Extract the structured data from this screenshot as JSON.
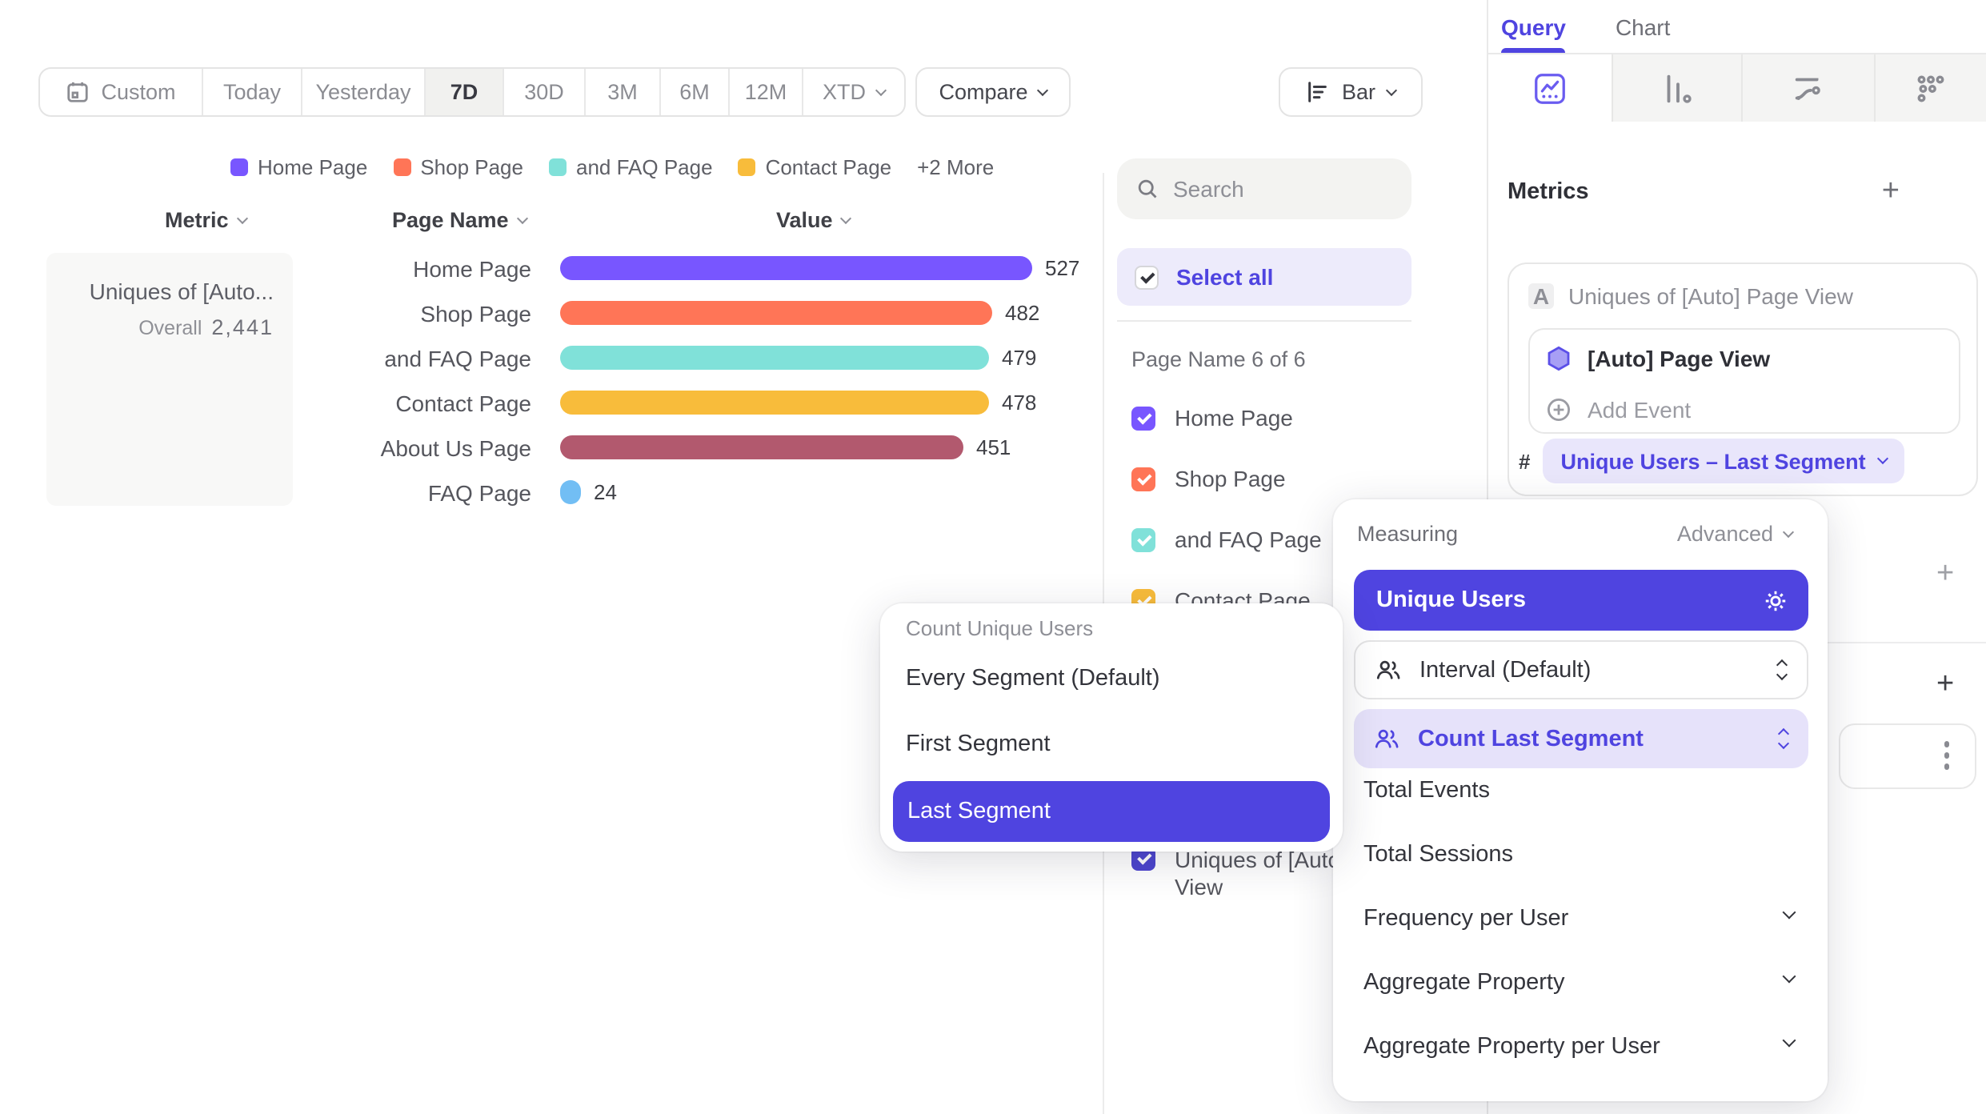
{
  "toolbar": {
    "date_ranges": [
      "Custom",
      "Today",
      "Yesterday",
      "7D",
      "30D",
      "3M",
      "6M",
      "12M",
      "XTD"
    ],
    "selected_range": "7D",
    "compare_label": "Compare",
    "chart_type_label": "Bar"
  },
  "legend": {
    "items": [
      {
        "label": "Home Page",
        "color": "#7856FF"
      },
      {
        "label": "Shop Page",
        "color": "#FF7557"
      },
      {
        "label": "and FAQ Page",
        "color": "#80E1D9"
      },
      {
        "label": "Contact Page",
        "color": "#F8BC3B"
      }
    ],
    "more_label": "+2 More"
  },
  "table": {
    "headers": [
      "Metric",
      "Page Name",
      "Value"
    ]
  },
  "metric_summary": {
    "title": "Uniques of [Auto...",
    "overall_label": "Overall",
    "overall_value": "2,441"
  },
  "chart_data": {
    "type": "bar",
    "orientation": "horizontal",
    "xmax": 527,
    "categories": [
      "Home Page",
      "Shop Page",
      "and FAQ Page",
      "Contact Page",
      "About Us Page",
      "FAQ Page"
    ],
    "values": [
      527,
      482,
      479,
      478,
      451,
      24
    ],
    "rows": [
      {
        "name": "Home Page",
        "value": 527,
        "color": "#7856FF"
      },
      {
        "name": "Shop Page",
        "value": 482,
        "color": "#FF7557"
      },
      {
        "name": "and FAQ Page",
        "value": 479,
        "color": "#80E1D9"
      },
      {
        "name": "Contact Page",
        "value": 478,
        "color": "#F8BC3B"
      },
      {
        "name": "About Us Page",
        "value": 451,
        "color": "#B2596E"
      },
      {
        "name": "FAQ Page",
        "value": 24,
        "color": "#72BEF4"
      }
    ],
    "metric": "Uniques of [Auto] Page View",
    "overall_total": 2441,
    "legend_position": "top"
  },
  "filter_panel": {
    "search_placeholder": "Search",
    "select_all_label": "Select all",
    "group_label": "Page Name 6 of 6",
    "items": [
      {
        "label": "Home Page",
        "color": "#7856FF",
        "checked": true
      },
      {
        "label": "Shop Page",
        "color": "#FF7557",
        "checked": true
      },
      {
        "label": "and FAQ Page",
        "color": "#80E1D9",
        "checked": true
      },
      {
        "label": "Contact Page",
        "color": "#F8BC3B",
        "checked": true
      }
    ],
    "metric_item": {
      "label_line1": "Uniques of [Auto",
      "label_line2": "View",
      "color": "#4C45CE",
      "checked": true
    }
  },
  "right_panel": {
    "tabs": [
      {
        "label": "Query",
        "active": true
      },
      {
        "label": "Chart",
        "active": false
      }
    ],
    "chart_type_tabs": [
      "insights-icon",
      "bar-chart-icon",
      "flows-icon",
      "retention-icon"
    ],
    "metrics_heading": "Metrics",
    "add_metric_icon": "+",
    "metric_card": {
      "badge": "A",
      "title": "Uniques of [Auto] Page View",
      "event_name": "[Auto] Page View",
      "add_event_label": "Add Event",
      "hash_symbol": "#",
      "measurement_pill": "Unique Users – Last Segment"
    }
  },
  "segment_menu": {
    "header": "Count Unique Users",
    "items": [
      "Every Segment (Default)",
      "First Segment",
      "Last Segment"
    ],
    "selected": "Last Segment"
  },
  "measuring_menu": {
    "header": "Measuring",
    "advanced_label": "Advanced",
    "selected_label": "Unique Users",
    "interval_label": "Interval (Default)",
    "count_last_segment_label": "Count Last Segment",
    "items": [
      "Total Events",
      "Total Sessions",
      "Frequency per User",
      "Aggregate Property",
      "Aggregate Property per User"
    ]
  },
  "colors": {
    "accent": "#4F44E0",
    "accent_light": "#E9E6FB",
    "series": [
      "#7856FF",
      "#FF7557",
      "#80E1D9",
      "#F8BC3B",
      "#B2596E",
      "#72BEF4"
    ]
  }
}
